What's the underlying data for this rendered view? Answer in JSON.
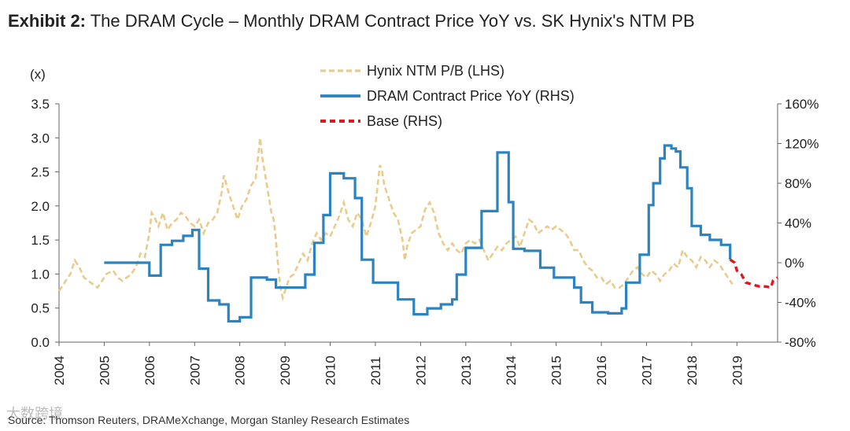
{
  "title": {
    "prefix": "Exhibit 2:",
    "text": "The DRAM Cycle – Monthly DRAM Contract Price YoY vs. SK Hynix's NTM PB"
  },
  "source": "Source: Thomson Reuters, DRAMeXchange, Morgan Stanley Research Estimates",
  "watermark": "大数跨境",
  "colors": {
    "pb": "#E8CC8E",
    "dram": "#2B84C0",
    "base": "#E8131B",
    "axis": "#666666"
  },
  "chart_data": {
    "type": "line",
    "left_unit": "(x)",
    "left_ticks": [
      "0.0",
      "0.5",
      "1.0",
      "1.5",
      "2.0",
      "2.5",
      "3.0",
      "3.5"
    ],
    "right_ticks": [
      "-80%",
      "-40%",
      "0%",
      "40%",
      "80%",
      "120%",
      "160%"
    ],
    "x_ticks": [
      "2004",
      "2005",
      "2006",
      "2007",
      "2008",
      "2009",
      "2010",
      "2011",
      "2012",
      "2013",
      "2014",
      "2015",
      "2016",
      "2017",
      "2018",
      "2019"
    ],
    "ylim_left": [
      0,
      3.5
    ],
    "ylim_right": [
      -80,
      160
    ],
    "xlim": [
      2004,
      2019.9
    ],
    "legend_position": "top-center",
    "series": [
      {
        "name": "Hynix NTM P/B (LHS)",
        "axis": "left",
        "style": "dashed",
        "points": [
          [
            2004.0,
            0.75
          ],
          [
            2004.1,
            0.85
          ],
          [
            2004.25,
            1.0
          ],
          [
            2004.35,
            1.2
          ],
          [
            2004.45,
            1.1
          ],
          [
            2004.55,
            0.95
          ],
          [
            2004.65,
            0.9
          ],
          [
            2004.75,
            0.85
          ],
          [
            2004.85,
            0.8
          ],
          [
            2004.95,
            0.9
          ],
          [
            2005.05,
            1.0
          ],
          [
            2005.2,
            1.05
          ],
          [
            2005.3,
            0.95
          ],
          [
            2005.4,
            0.9
          ],
          [
            2005.5,
            0.95
          ],
          [
            2005.6,
            1.0
          ],
          [
            2005.7,
            1.1
          ],
          [
            2005.8,
            1.3
          ],
          [
            2005.9,
            1.25
          ],
          [
            2006.0,
            1.6
          ],
          [
            2006.05,
            1.9
          ],
          [
            2006.1,
            1.85
          ],
          [
            2006.2,
            1.7
          ],
          [
            2006.3,
            1.9
          ],
          [
            2006.4,
            1.65
          ],
          [
            2006.5,
            1.75
          ],
          [
            2006.6,
            1.8
          ],
          [
            2006.7,
            1.9
          ],
          [
            2006.8,
            1.85
          ],
          [
            2006.9,
            1.75
          ],
          [
            2007.0,
            1.7
          ],
          [
            2007.1,
            1.8
          ],
          [
            2007.2,
            1.6
          ],
          [
            2007.3,
            1.75
          ],
          [
            2007.4,
            1.8
          ],
          [
            2007.5,
            1.9
          ],
          [
            2007.6,
            2.2
          ],
          [
            2007.65,
            2.45
          ],
          [
            2007.75,
            2.2
          ],
          [
            2007.85,
            2.0
          ],
          [
            2007.95,
            1.8
          ],
          [
            2008.05,
            2.0
          ],
          [
            2008.15,
            2.1
          ],
          [
            2008.25,
            2.3
          ],
          [
            2008.35,
            2.4
          ],
          [
            2008.4,
            2.7
          ],
          [
            2008.45,
            3.0
          ],
          [
            2008.5,
            2.7
          ],
          [
            2008.55,
            2.5
          ],
          [
            2008.65,
            2.1
          ],
          [
            2008.7,
            1.9
          ],
          [
            2008.75,
            1.8
          ],
          [
            2008.8,
            1.5
          ],
          [
            2008.85,
            1.1
          ],
          [
            2008.9,
            0.8
          ],
          [
            2008.95,
            0.65
          ],
          [
            2009.0,
            0.75
          ],
          [
            2009.1,
            0.95
          ],
          [
            2009.2,
            1.0
          ],
          [
            2009.3,
            1.15
          ],
          [
            2009.4,
            1.3
          ],
          [
            2009.5,
            1.2
          ],
          [
            2009.6,
            1.45
          ],
          [
            2009.7,
            1.6
          ],
          [
            2009.8,
            1.5
          ],
          [
            2009.9,
            1.6
          ],
          [
            2010.0,
            1.55
          ],
          [
            2010.1,
            1.7
          ],
          [
            2010.2,
            1.85
          ],
          [
            2010.3,
            2.05
          ],
          [
            2010.4,
            1.8
          ],
          [
            2010.5,
            1.7
          ],
          [
            2010.6,
            1.9
          ],
          [
            2010.7,
            1.8
          ],
          [
            2010.8,
            1.55
          ],
          [
            2010.9,
            1.75
          ],
          [
            2011.0,
            2.0
          ],
          [
            2011.05,
            2.3
          ],
          [
            2011.1,
            2.6
          ],
          [
            2011.15,
            2.5
          ],
          [
            2011.2,
            2.3
          ],
          [
            2011.3,
            2.1
          ],
          [
            2011.4,
            1.9
          ],
          [
            2011.5,
            1.8
          ],
          [
            2011.6,
            1.5
          ],
          [
            2011.65,
            1.2
          ],
          [
            2011.7,
            1.4
          ],
          [
            2011.8,
            1.6
          ],
          [
            2011.9,
            1.65
          ],
          [
            2012.0,
            1.7
          ],
          [
            2012.1,
            1.95
          ],
          [
            2012.2,
            2.05
          ],
          [
            2012.3,
            1.9
          ],
          [
            2012.4,
            1.6
          ],
          [
            2012.5,
            1.45
          ],
          [
            2012.6,
            1.35
          ],
          [
            2012.7,
            1.45
          ],
          [
            2012.8,
            1.35
          ],
          [
            2012.9,
            1.3
          ],
          [
            2013.0,
            1.45
          ],
          [
            2013.1,
            1.5
          ],
          [
            2013.2,
            1.45
          ],
          [
            2013.3,
            1.5
          ],
          [
            2013.4,
            1.35
          ],
          [
            2013.5,
            1.2
          ],
          [
            2013.6,
            1.3
          ],
          [
            2013.7,
            1.4
          ],
          [
            2013.8,
            1.35
          ],
          [
            2013.9,
            1.45
          ],
          [
            2014.0,
            1.5
          ],
          [
            2014.1,
            1.55
          ],
          [
            2014.2,
            1.4
          ],
          [
            2014.3,
            1.6
          ],
          [
            2014.4,
            1.8
          ],
          [
            2014.5,
            1.75
          ],
          [
            2014.6,
            1.6
          ],
          [
            2014.7,
            1.65
          ],
          [
            2014.8,
            1.7
          ],
          [
            2014.9,
            1.65
          ],
          [
            2015.0,
            1.7
          ],
          [
            2015.1,
            1.65
          ],
          [
            2015.2,
            1.6
          ],
          [
            2015.3,
            1.5
          ],
          [
            2015.4,
            1.35
          ],
          [
            2015.5,
            1.35
          ],
          [
            2015.6,
            1.2
          ],
          [
            2015.7,
            1.1
          ],
          [
            2015.8,
            1.05
          ],
          [
            2015.9,
            0.95
          ],
          [
            2016.0,
            0.95
          ],
          [
            2016.1,
            0.85
          ],
          [
            2016.2,
            0.9
          ],
          [
            2016.3,
            0.8
          ],
          [
            2016.4,
            0.8
          ],
          [
            2016.5,
            0.85
          ],
          [
            2016.6,
            0.95
          ],
          [
            2016.7,
            1.05
          ],
          [
            2016.8,
            1.1
          ],
          [
            2016.9,
            1.0
          ],
          [
            2017.0,
            0.95
          ],
          [
            2017.1,
            1.05
          ],
          [
            2017.2,
            1.0
          ],
          [
            2017.3,
            0.9
          ],
          [
            2017.4,
            1.0
          ],
          [
            2017.5,
            1.05
          ],
          [
            2017.6,
            1.15
          ],
          [
            2017.7,
            1.1
          ],
          [
            2017.8,
            1.35
          ],
          [
            2017.9,
            1.25
          ],
          [
            2018.0,
            1.2
          ],
          [
            2018.1,
            1.1
          ],
          [
            2018.2,
            1.25
          ],
          [
            2018.3,
            1.2
          ],
          [
            2018.4,
            1.1
          ],
          [
            2018.5,
            1.2
          ],
          [
            2018.6,
            1.15
          ],
          [
            2018.7,
            1.05
          ],
          [
            2018.8,
            0.95
          ],
          [
            2018.9,
            0.85
          ]
        ]
      },
      {
        "name": "DRAM Contract Price YoY (RHS)",
        "axis": "right",
        "style": "step",
        "points": [
          [
            2005.0,
            0
          ],
          [
            2006.0,
            0
          ],
          [
            2006.0,
            -13
          ],
          [
            2006.25,
            -13
          ],
          [
            2006.25,
            18
          ],
          [
            2006.5,
            18
          ],
          [
            2006.5,
            22
          ],
          [
            2006.75,
            22
          ],
          [
            2006.75,
            27
          ],
          [
            2006.95,
            27
          ],
          [
            2006.95,
            33
          ],
          [
            2007.1,
            33
          ],
          [
            2007.1,
            -6
          ],
          [
            2007.3,
            -6
          ],
          [
            2007.3,
            -38
          ],
          [
            2007.55,
            -38
          ],
          [
            2007.55,
            -42
          ],
          [
            2007.75,
            -42
          ],
          [
            2007.75,
            -59
          ],
          [
            2008.0,
            -59
          ],
          [
            2008.0,
            -55
          ],
          [
            2008.25,
            -55
          ],
          [
            2008.25,
            -15
          ],
          [
            2008.6,
            -15
          ],
          [
            2008.6,
            -17
          ],
          [
            2008.8,
            -17
          ],
          [
            2008.8,
            -25
          ],
          [
            2009.45,
            -25
          ],
          [
            2009.45,
            -12
          ],
          [
            2009.65,
            -12
          ],
          [
            2009.65,
            20
          ],
          [
            2009.85,
            20
          ],
          [
            2009.85,
            48
          ],
          [
            2010.0,
            48
          ],
          [
            2010.0,
            90
          ],
          [
            2010.3,
            90
          ],
          [
            2010.3,
            85
          ],
          [
            2010.55,
            85
          ],
          [
            2010.55,
            65
          ],
          [
            2010.7,
            65
          ],
          [
            2010.7,
            3
          ],
          [
            2010.95,
            3
          ],
          [
            2010.95,
            -20
          ],
          [
            2011.5,
            -20
          ],
          [
            2011.5,
            -37
          ],
          [
            2011.85,
            -37
          ],
          [
            2011.85,
            -52
          ],
          [
            2012.15,
            -52
          ],
          [
            2012.15,
            -46
          ],
          [
            2012.45,
            -46
          ],
          [
            2012.45,
            -42
          ],
          [
            2012.7,
            -42
          ],
          [
            2012.7,
            -37
          ],
          [
            2012.8,
            -37
          ],
          [
            2012.8,
            -12
          ],
          [
            2013.0,
            -12
          ],
          [
            2013.0,
            15
          ],
          [
            2013.35,
            15
          ],
          [
            2013.35,
            52
          ],
          [
            2013.7,
            52
          ],
          [
            2013.7,
            111
          ],
          [
            2013.95,
            111
          ],
          [
            2013.95,
            61
          ],
          [
            2014.05,
            61
          ],
          [
            2014.05,
            14
          ],
          [
            2014.3,
            14
          ],
          [
            2014.3,
            12
          ],
          [
            2014.65,
            12
          ],
          [
            2014.65,
            -5
          ],
          [
            2014.95,
            -5
          ],
          [
            2014.95,
            -15
          ],
          [
            2015.4,
            -15
          ],
          [
            2015.4,
            -25
          ],
          [
            2015.55,
            -25
          ],
          [
            2015.55,
            -40
          ],
          [
            2015.8,
            -40
          ],
          [
            2015.8,
            -50
          ],
          [
            2016.15,
            -50
          ],
          [
            2016.15,
            -51
          ],
          [
            2016.45,
            -51
          ],
          [
            2016.45,
            -46
          ],
          [
            2016.55,
            -46
          ],
          [
            2016.55,
            -20
          ],
          [
            2016.85,
            -20
          ],
          [
            2016.85,
            8
          ],
          [
            2017.05,
            8
          ],
          [
            2017.05,
            58
          ],
          [
            2017.15,
            58
          ],
          [
            2017.15,
            80
          ],
          [
            2017.3,
            80
          ],
          [
            2017.3,
            105
          ],
          [
            2017.4,
            105
          ],
          [
            2017.4,
            118
          ],
          [
            2017.55,
            118
          ],
          [
            2017.55,
            115
          ],
          [
            2017.65,
            115
          ],
          [
            2017.65,
            112
          ],
          [
            2017.75,
            112
          ],
          [
            2017.75,
            96
          ],
          [
            2017.9,
            96
          ],
          [
            2017.9,
            75
          ],
          [
            2018.0,
            75
          ],
          [
            2018.0,
            37
          ],
          [
            2018.2,
            37
          ],
          [
            2018.2,
            28
          ],
          [
            2018.4,
            28
          ],
          [
            2018.4,
            23
          ],
          [
            2018.65,
            23
          ],
          [
            2018.65,
            18
          ],
          [
            2018.85,
            18
          ],
          [
            2018.85,
            3
          ]
        ]
      },
      {
        "name": "Base (RHS)",
        "axis": "right",
        "style": "dashed",
        "points": [
          [
            2018.85,
            3
          ],
          [
            2018.95,
            0
          ],
          [
            2019.0,
            -8
          ],
          [
            2019.1,
            -12
          ],
          [
            2019.2,
            -20
          ],
          [
            2019.35,
            -22
          ],
          [
            2019.5,
            -24
          ],
          [
            2019.65,
            -24
          ],
          [
            2019.75,
            -25
          ],
          [
            2019.8,
            -18
          ],
          [
            2019.9,
            -15
          ]
        ]
      }
    ]
  }
}
